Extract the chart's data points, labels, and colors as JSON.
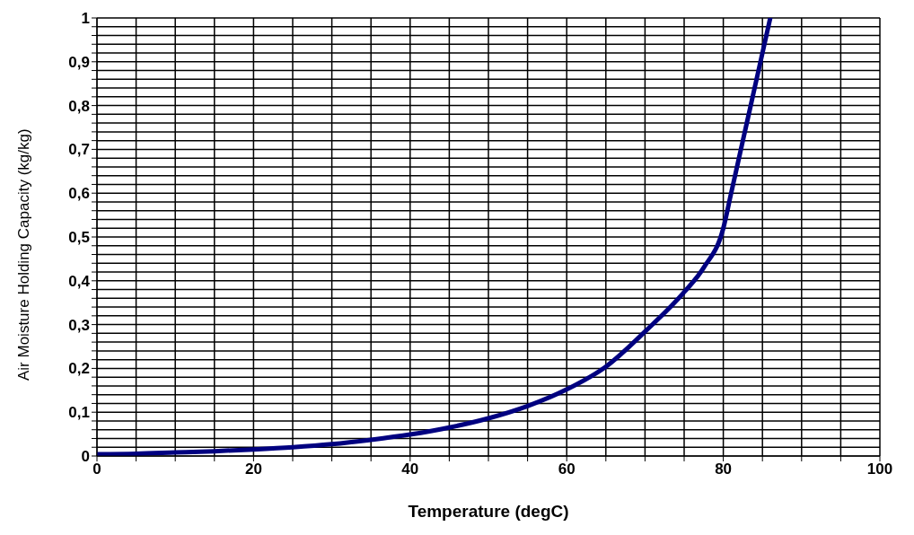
{
  "chart_data": {
    "type": "line",
    "xlabel": "Temperature (degC)",
    "ylabel": "Air Moisture Holding Capacity (kg/kg)",
    "x": [
      0,
      5,
      10,
      15,
      20,
      25,
      30,
      35,
      40,
      45,
      50,
      55,
      60,
      65,
      70,
      75,
      77.5,
      80,
      81,
      82,
      83,
      84,
      85,
      86
    ],
    "series": [
      {
        "color": "#000080",
        "values": [
          0.004,
          0.005,
          0.008,
          0.011,
          0.015,
          0.02,
          0.027,
          0.037,
          0.049,
          0.065,
          0.086,
          0.114,
          0.152,
          0.204,
          0.284,
          0.374,
          0.43,
          0.52,
          0.6,
          0.68,
          0.76,
          0.84,
          0.92,
          1.0
        ]
      }
    ],
    "xlim": [
      0,
      100
    ],
    "xticks": [
      0,
      {
        "value": 5,
        "label": null
      },
      {
        "value": 10,
        "label": null
      },
      {
        "value": 15,
        "label": null
      },
      20,
      {
        "value": 25,
        "label": null
      },
      {
        "value": 30,
        "label": null
      },
      {
        "value": 35,
        "label": null
      },
      40,
      {
        "value": 45,
        "label": null
      },
      {
        "value": 50,
        "label": null
      },
      {
        "value": 55,
        "label": null
      },
      60,
      {
        "value": 65,
        "label": null
      },
      {
        "value": 70,
        "label": null
      },
      {
        "value": 75,
        "label": null
      },
      80,
      {
        "value": 85,
        "label": null
      },
      {
        "value": 90,
        "label": null
      },
      {
        "value": 95,
        "label": null
      },
      100
    ],
    "ylim": [
      0,
      1
    ],
    "yticks": [
      0,
      {
        "value": 0.02,
        "label": null
      },
      {
        "value": 0.04,
        "label": null
      },
      {
        "value": 0.06,
        "label": null
      },
      {
        "value": 0.08,
        "label": null
      },
      {
        "value": 0.1,
        "label": "0,1"
      },
      {
        "value": 0.12,
        "label": null
      },
      {
        "value": 0.14,
        "label": null
      },
      {
        "value": 0.16,
        "label": null
      },
      {
        "value": 0.18,
        "label": null
      },
      {
        "value": 0.2,
        "label": "0,2"
      },
      {
        "value": 0.22,
        "label": null
      },
      {
        "value": 0.24,
        "label": null
      },
      {
        "value": 0.26,
        "label": null
      },
      {
        "value": 0.28,
        "label": null
      },
      {
        "value": 0.3,
        "label": "0,3"
      },
      {
        "value": 0.32,
        "label": null
      },
      {
        "value": 0.34,
        "label": null
      },
      {
        "value": 0.36,
        "label": null
      },
      {
        "value": 0.38,
        "label": null
      },
      {
        "value": 0.4,
        "label": "0,4"
      },
      {
        "value": 0.42,
        "label": null
      },
      {
        "value": 0.44,
        "label": null
      },
      {
        "value": 0.46,
        "label": null
      },
      {
        "value": 0.48,
        "label": null
      },
      {
        "value": 0.5,
        "label": "0,5"
      },
      {
        "value": 0.52,
        "label": null
      },
      {
        "value": 0.54,
        "label": null
      },
      {
        "value": 0.56,
        "label": null
      },
      {
        "value": 0.58,
        "label": null
      },
      {
        "value": 0.6,
        "label": "0,6"
      },
      {
        "value": 0.62,
        "label": null
      },
      {
        "value": 0.64,
        "label": null
      },
      {
        "value": 0.66,
        "label": null
      },
      {
        "value": 0.68,
        "label": null
      },
      {
        "value": 0.7,
        "label": "0,7"
      },
      {
        "value": 0.72,
        "label": null
      },
      {
        "value": 0.74,
        "label": null
      },
      {
        "value": 0.76,
        "label": null
      },
      {
        "value": 0.78,
        "label": null
      },
      {
        "value": 0.8,
        "label": "0,8"
      },
      {
        "value": 0.82,
        "label": null
      },
      {
        "value": 0.84,
        "label": null
      },
      {
        "value": 0.86,
        "label": null
      },
      {
        "value": 0.88,
        "label": null
      },
      {
        "value": 0.9,
        "label": "0,9"
      },
      {
        "value": 0.92,
        "label": null
      },
      {
        "value": 0.94,
        "label": null
      },
      {
        "value": 0.96,
        "label": null
      },
      {
        "value": 0.98,
        "label": null
      },
      1
    ],
    "grid": true,
    "marker": "none",
    "line_style": "solid"
  }
}
